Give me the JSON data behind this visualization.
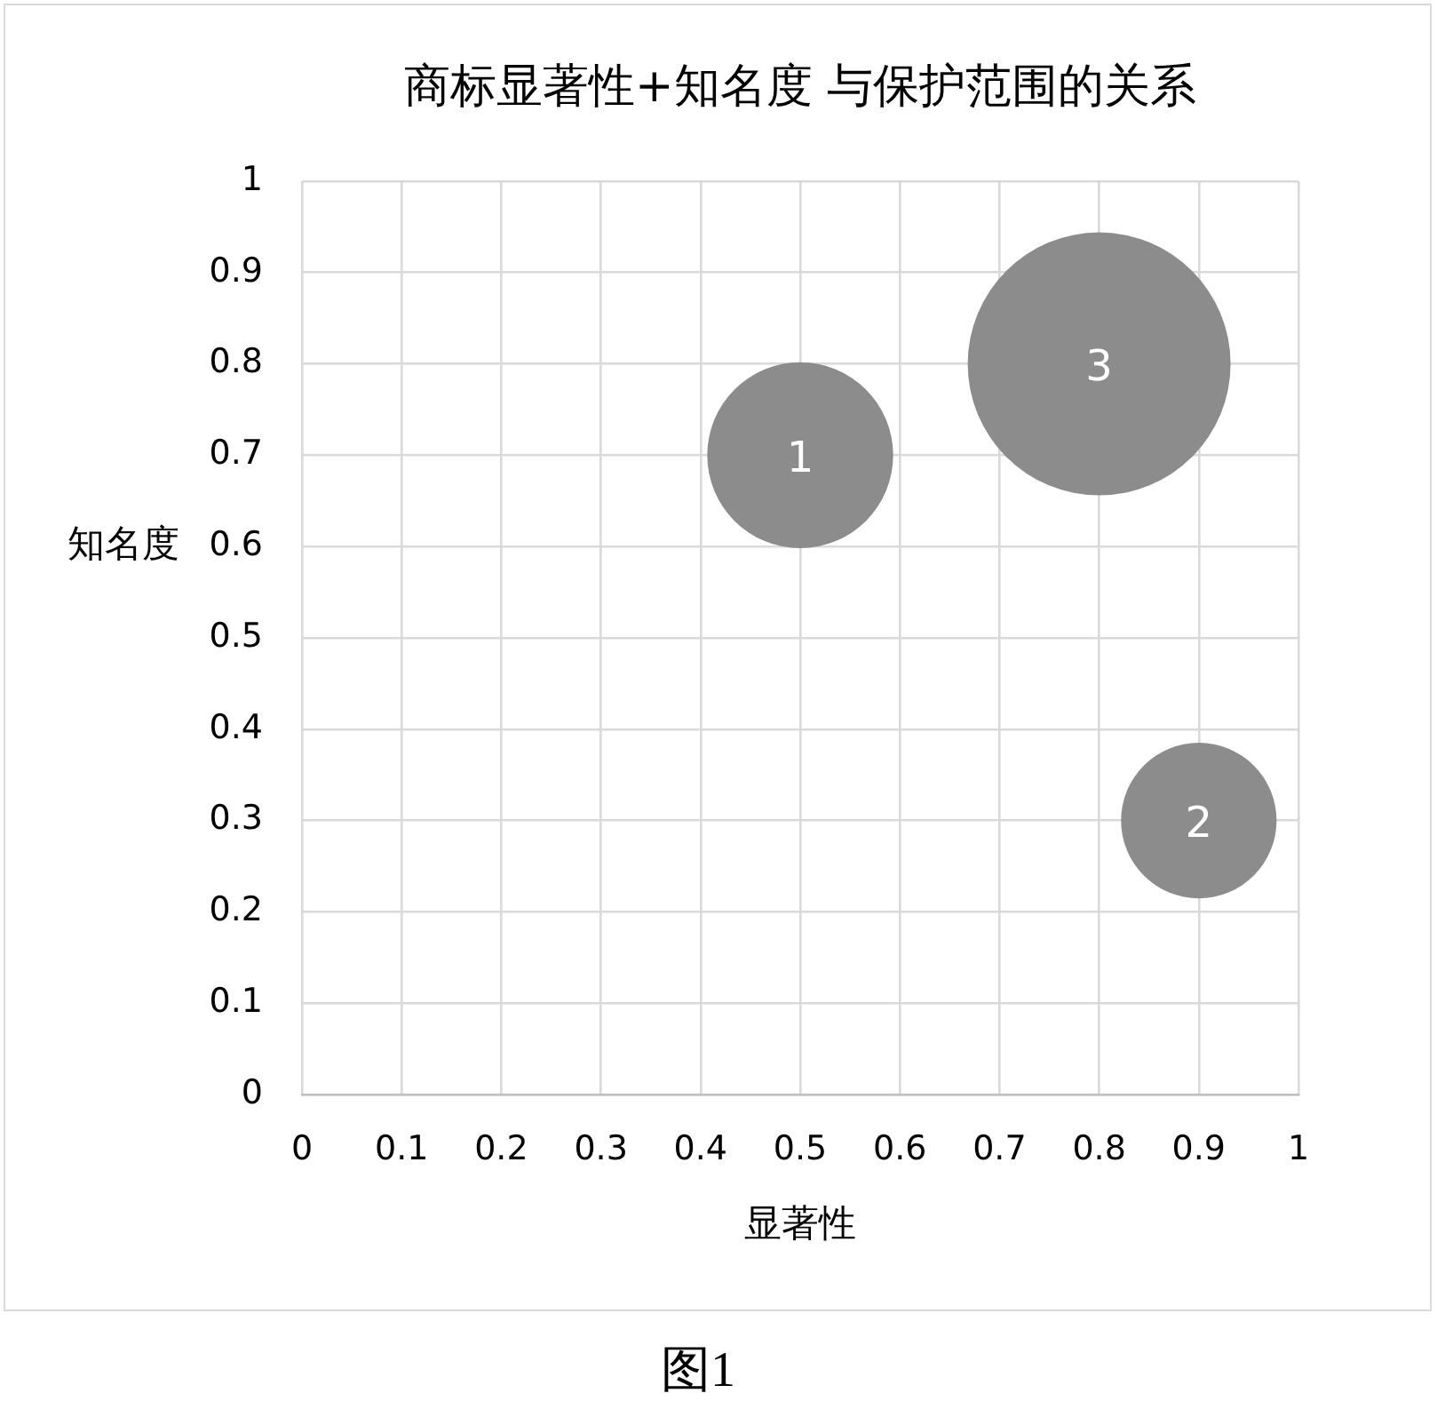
{
  "chart_data": {
    "type": "bubble",
    "title": "商标显著性+知名度 与保护范围的关系",
    "xlabel": "显著性",
    "ylabel": "知名度",
    "x": [
      0.5,
      0.9,
      0.8
    ],
    "values": [
      0.7,
      0.3,
      0.8
    ],
    "sizes": [
      0.5,
      0.35,
      1
    ],
    "color": "#8c8c8c",
    "xlim": [
      0,
      1
    ],
    "ylim": [
      0,
      1
    ],
    "xticks": [
      0,
      0.1,
      0.2,
      0.3,
      0.4,
      0.5,
      0.6,
      0.7,
      0.8,
      0.9,
      1
    ],
    "yticks": [
      0,
      0.1,
      0.2,
      0.3,
      0.4,
      0.5,
      0.6,
      0.7,
      0.8,
      0.9,
      1
    ],
    "grid": true,
    "annotations": [
      {
        "text": "1",
        "x": 0.5,
        "y": 0.7
      },
      {
        "text": "2",
        "x": 0.9,
        "y": 0.3
      },
      {
        "text": "3",
        "x": 0.8,
        "y": 0.8
      },
      "图1"
    ]
  }
}
